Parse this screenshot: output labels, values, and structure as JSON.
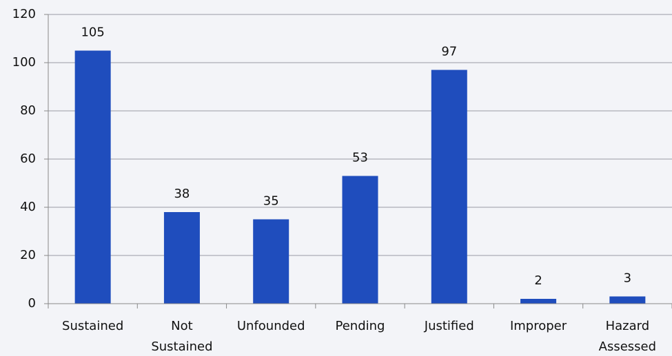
{
  "chart_data": {
    "type": "bar",
    "categories": [
      "Sustained",
      "Not Sustained",
      "Unfounded",
      "Pending",
      "Justified",
      "Improper",
      "Hazard Assessed"
    ],
    "values": [
      105,
      38,
      35,
      53,
      97,
      2,
      3
    ],
    "color": "#1f4dbd",
    "ylim": [
      0,
      120
    ],
    "yticks": [
      0,
      20,
      40,
      60,
      80,
      100,
      120
    ],
    "grid": true
  }
}
